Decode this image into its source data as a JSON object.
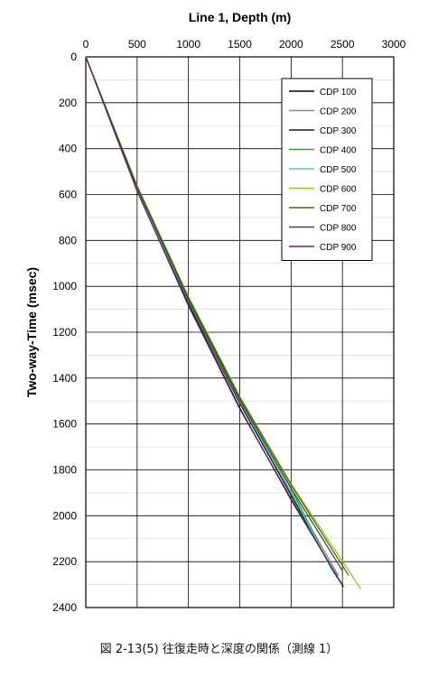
{
  "caption": "図 2-13(5) 往復走時と深度の関係（測線 1）",
  "chart_data": {
    "type": "line",
    "title": "Line 1, Depth (m)",
    "xlabel": "Line 1, Depth (m)",
    "ylabel": "Two-way-Time (msec)",
    "x_axis_position": "top",
    "y_inverted": true,
    "xlim": [
      0,
      3000
    ],
    "ylim": [
      0,
      2400
    ],
    "xticks": [
      0,
      500,
      1000,
      1500,
      2000,
      2500,
      3000
    ],
    "yticks": [
      0,
      200,
      400,
      600,
      800,
      1000,
      1200,
      1400,
      1600,
      1800,
      2000,
      2200,
      2400
    ],
    "grid": true,
    "legend_position": "top-right",
    "series": [
      {
        "name": "CDP 100",
        "color": "#000000",
        "x": [
          0,
          500,
          1000,
          1500,
          2000,
          2510
        ],
        "y": [
          0,
          580,
          1080,
          1530,
          1930,
          2310
        ]
      },
      {
        "name": "CDP 200",
        "color": "#888888",
        "x": [
          0,
          500,
          1000,
          1500,
          2000,
          2460
        ],
        "y": [
          0,
          570,
          1065,
          1500,
          1900,
          2260
        ]
      },
      {
        "name": "CDP 300",
        "color": "#1a1a1a",
        "x": [
          0,
          500,
          1000,
          1500,
          2000,
          2450
        ],
        "y": [
          0,
          575,
          1070,
          1510,
          1910,
          2270
        ]
      },
      {
        "name": "CDP 400",
        "color": "#22aa22",
        "x": [
          0,
          500,
          1000,
          1500,
          2000,
          2400
        ],
        "y": [
          0,
          575,
          1060,
          1495,
          1880,
          2240
        ]
      },
      {
        "name": "CDP 500",
        "color": "#44cccc",
        "x": [
          0,
          500,
          1000,
          1500,
          2000,
          2420
        ],
        "y": [
          0,
          580,
          1065,
          1500,
          1895,
          2255
        ]
      },
      {
        "name": "CDP 600",
        "color": "#88cc22",
        "x": [
          0,
          500,
          1000,
          1500,
          2000,
          2680
        ],
        "y": [
          0,
          560,
          1045,
          1480,
          1860,
          2320
        ]
      },
      {
        "name": "CDP 700",
        "color": "#556600",
        "x": [
          0,
          500,
          1000,
          1500,
          2000,
          2560
        ],
        "y": [
          0,
          565,
          1050,
          1485,
          1865,
          2260
        ]
      },
      {
        "name": "CDP 800",
        "color": "#444444",
        "x": [
          0,
          500,
          1000,
          1500,
          2000,
          2500
        ],
        "y": [
          0,
          570,
          1060,
          1495,
          1880,
          2240
        ]
      },
      {
        "name": "CDP 900",
        "color": "#662266",
        "x": [
          0,
          500,
          1000,
          1500,
          2000,
          2480
        ],
        "y": [
          0,
          585,
          1085,
          1535,
          1925,
          2290
        ]
      }
    ]
  }
}
